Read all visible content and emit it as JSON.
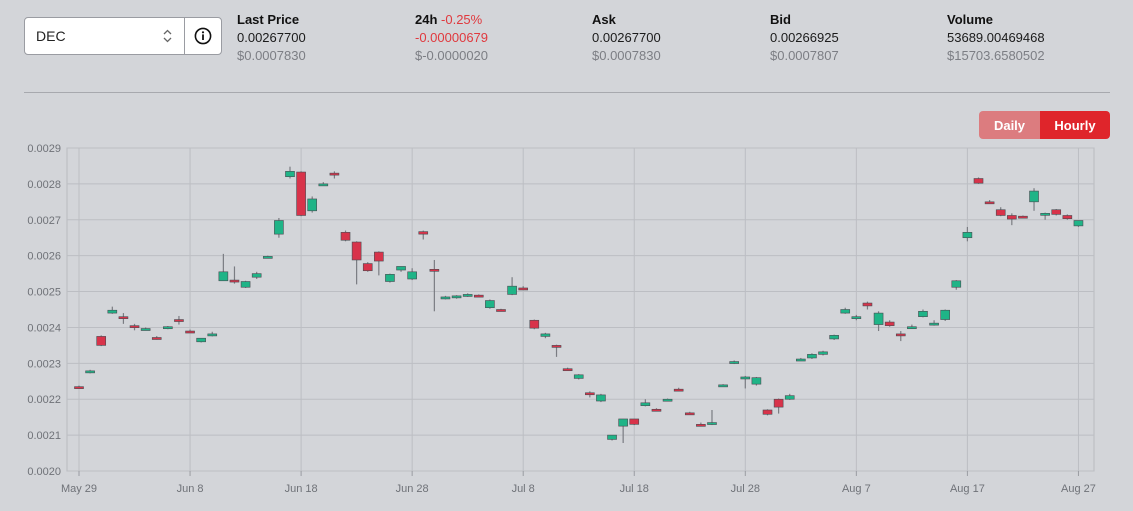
{
  "pair_selector": {
    "value": "DEC"
  },
  "stats": {
    "last_price": {
      "label": "Last Price",
      "value": "0.00267700",
      "usd": "$0.0007830"
    },
    "change_24h": {
      "label": "24h",
      "percent": "-0.25%",
      "value": "-0.00000679",
      "usd": "$-0.0000020"
    },
    "ask": {
      "label": "Ask",
      "value": "0.00267700",
      "usd": "$0.0007830"
    },
    "bid": {
      "label": "Bid",
      "value": "0.00266925",
      "usd": "$0.0007807"
    },
    "volume": {
      "label": "Volume",
      "value": "53689.00469468",
      "usd": "$15703.6580502"
    }
  },
  "toggle": {
    "daily": "Daily",
    "hourly": "Hourly",
    "active": "Hourly"
  },
  "colors": {
    "up": "#1fb487",
    "down": "#d8334a",
    "accent": "#df252b"
  },
  "chart_data": {
    "type": "candlestick",
    "y_ticks": [
      "0.0020",
      "0.0021",
      "0.0022",
      "0.0023",
      "0.0024",
      "0.0025",
      "0.0026",
      "0.0027",
      "0.0028",
      "0.0029"
    ],
    "ylim": [
      0.002,
      0.0029
    ],
    "x_ticks": [
      "May 29",
      "Jun 8",
      "Jun 18",
      "Jun 28",
      "Jul 8",
      "Jul 18",
      "Jul 28",
      "Aug 7",
      "Aug 17",
      "Aug 27"
    ],
    "x_range_days": [
      0,
      91
    ],
    "grid": true,
    "candles": [
      {
        "d": 0,
        "o": 0.002235,
        "h": 0.002238,
        "l": 0.00223,
        "c": 0.002232
      },
      {
        "d": 1,
        "o": 0.002277,
        "h": 0.002282,
        "l": 0.002272,
        "c": 0.002279
      },
      {
        "d": 2,
        "o": 0.002375,
        "h": 0.002378,
        "l": 0.002348,
        "c": 0.00235
      },
      {
        "d": 3,
        "o": 0.00244,
        "h": 0.002458,
        "l": 0.002438,
        "c": 0.002448
      },
      {
        "d": 4,
        "o": 0.00243,
        "h": 0.00244,
        "l": 0.00241,
        "c": 0.002428
      },
      {
        "d": 5,
        "o": 0.002405,
        "h": 0.00241,
        "l": 0.002392,
        "c": 0.002402
      },
      {
        "d": 6,
        "o": 0.002396,
        "h": 0.0024,
        "l": 0.002392,
        "c": 0.002397
      },
      {
        "d": 7,
        "o": 0.002372,
        "h": 0.002376,
        "l": 0.002366,
        "c": 0.002368
      },
      {
        "d": 8,
        "o": 0.0024,
        "h": 0.002404,
        "l": 0.002395,
        "c": 0.002402
      },
      {
        "d": 9,
        "o": 0.002422,
        "h": 0.002432,
        "l": 0.002408,
        "c": 0.00242
      },
      {
        "d": 10,
        "o": 0.00239,
        "h": 0.002394,
        "l": 0.002385,
        "c": 0.002388
      },
      {
        "d": 11,
        "o": 0.00236,
        "h": 0.002368,
        "l": 0.002358,
        "c": 0.00237
      },
      {
        "d": 12,
        "o": 0.00238,
        "h": 0.002388,
        "l": 0.002375,
        "c": 0.002382
      },
      {
        "d": 13,
        "o": 0.00253,
        "h": 0.002605,
        "l": 0.00253,
        "c": 0.002555
      },
      {
        "d": 14,
        "o": 0.002532,
        "h": 0.00257,
        "l": 0.002522,
        "c": 0.00253
      },
      {
        "d": 15,
        "o": 0.002512,
        "h": 0.00253,
        "l": 0.00251,
        "c": 0.002528
      },
      {
        "d": 16,
        "o": 0.00254,
        "h": 0.002555,
        "l": 0.002535,
        "c": 0.00255
      },
      {
        "d": 17,
        "o": 0.002597,
        "h": 0.0026,
        "l": 0.002595,
        "c": 0.002598
      },
      {
        "d": 18,
        "o": 0.00266,
        "h": 0.002705,
        "l": 0.00265,
        "c": 0.002698
      },
      {
        "d": 19,
        "o": 0.00282,
        "h": 0.002848,
        "l": 0.002815,
        "c": 0.002835
      },
      {
        "d": 20,
        "o": 0.002833,
        "h": 0.002835,
        "l": 0.00271,
        "c": 0.002712
      },
      {
        "d": 21,
        "o": 0.002725,
        "h": 0.002765,
        "l": 0.00272,
        "c": 0.002758
      },
      {
        "d": 22,
        "o": 0.0028,
        "h": 0.002805,
        "l": 0.002795,
        "c": 0.0028
      },
      {
        "d": 23,
        "o": 0.00283,
        "h": 0.002835,
        "l": 0.002815,
        "c": 0.002825
      },
      {
        "d": 24,
        "o": 0.002665,
        "h": 0.00267,
        "l": 0.00264,
        "c": 0.002643
      },
      {
        "d": 25,
        "o": 0.002638,
        "h": 0.00264,
        "l": 0.00252,
        "c": 0.002588
      },
      {
        "d": 26,
        "o": 0.002578,
        "h": 0.002582,
        "l": 0.002555,
        "c": 0.002558
      },
      {
        "d": 27,
        "o": 0.00261,
        "h": 0.002612,
        "l": 0.002545,
        "c": 0.002585
      },
      {
        "d": 28,
        "o": 0.002528,
        "h": 0.00255,
        "l": 0.002525,
        "c": 0.002548
      },
      {
        "d": 29,
        "o": 0.00256,
        "h": 0.00257,
        "l": 0.002555,
        "c": 0.00257
      },
      {
        "d": 30,
        "o": 0.002535,
        "h": 0.002565,
        "l": 0.002532,
        "c": 0.002555
      },
      {
        "d": 31,
        "o": 0.002667,
        "h": 0.00267,
        "l": 0.002645,
        "c": 0.00266
      },
      {
        "d": 32,
        "o": 0.002562,
        "h": 0.002588,
        "l": 0.002445,
        "c": 0.00256
      },
      {
        "d": 33,
        "o": 0.002482,
        "h": 0.002488,
        "l": 0.002478,
        "c": 0.002485
      },
      {
        "d": 34,
        "o": 0.002485,
        "h": 0.00249,
        "l": 0.00248,
        "c": 0.002488
      },
      {
        "d": 35,
        "o": 0.002488,
        "h": 0.002495,
        "l": 0.002485,
        "c": 0.002492
      },
      {
        "d": 36,
        "o": 0.00249,
        "h": 0.002492,
        "l": 0.002486,
        "c": 0.002488
      },
      {
        "d": 37,
        "o": 0.002455,
        "h": 0.002478,
        "l": 0.002452,
        "c": 0.002475
      },
      {
        "d": 38,
        "o": 0.00245,
        "h": 0.002452,
        "l": 0.002448,
        "c": 0.002448
      },
      {
        "d": 39,
        "o": 0.002492,
        "h": 0.00254,
        "l": 0.00249,
        "c": 0.002515
      },
      {
        "d": 40,
        "o": 0.00251,
        "h": 0.002515,
        "l": 0.002505,
        "c": 0.002508
      },
      {
        "d": 41,
        "o": 0.00242,
        "h": 0.002422,
        "l": 0.002395,
        "c": 0.002398
      },
      {
        "d": 42,
        "o": 0.002375,
        "h": 0.002385,
        "l": 0.00237,
        "c": 0.002382
      },
      {
        "d": 43,
        "o": 0.00235,
        "h": 0.002352,
        "l": 0.002318,
        "c": 0.002348
      },
      {
        "d": 44,
        "o": 0.002285,
        "h": 0.002288,
        "l": 0.00228,
        "c": 0.002282
      },
      {
        "d": 45,
        "o": 0.002258,
        "h": 0.00227,
        "l": 0.002255,
        "c": 0.002268
      },
      {
        "d": 46,
        "o": 0.002218,
        "h": 0.002222,
        "l": 0.002205,
        "c": 0.002215
      },
      {
        "d": 47,
        "o": 0.002195,
        "h": 0.002215,
        "l": 0.002192,
        "c": 0.002212
      },
      {
        "d": 48,
        "o": 0.002088,
        "h": 0.0021,
        "l": 0.002085,
        "c": 0.0021
      },
      {
        "d": 49,
        "o": 0.002125,
        "h": 0.002145,
        "l": 0.002078,
        "c": 0.002145
      },
      {
        "d": 50,
        "o": 0.002145,
        "h": 0.002145,
        "l": 0.002128,
        "c": 0.00213
      },
      {
        "d": 51,
        "o": 0.002182,
        "h": 0.0022,
        "l": 0.00218,
        "c": 0.00219
      },
      {
        "d": 52,
        "o": 0.002172,
        "h": 0.002175,
        "l": 0.002168,
        "c": 0.00217
      },
      {
        "d": 53,
        "o": 0.002198,
        "h": 0.002202,
        "l": 0.002195,
        "c": 0.0022
      },
      {
        "d": 54,
        "o": 0.002228,
        "h": 0.002232,
        "l": 0.002222,
        "c": 0.002225
      },
      {
        "d": 55,
        "o": 0.002162,
        "h": 0.002165,
        "l": 0.002158,
        "c": 0.00216
      },
      {
        "d": 56,
        "o": 0.00213,
        "h": 0.002135,
        "l": 0.002125,
        "c": 0.002128
      },
      {
        "d": 57,
        "o": 0.002135,
        "h": 0.00217,
        "l": 0.002128,
        "c": 0.002135
      },
      {
        "d": 58,
        "o": 0.002238,
        "h": 0.002242,
        "l": 0.002235,
        "c": 0.00224
      },
      {
        "d": 59,
        "o": 0.002302,
        "h": 0.002308,
        "l": 0.002298,
        "c": 0.002305
      },
      {
        "d": 60,
        "o": 0.002262,
        "h": 0.002265,
        "l": 0.00223,
        "c": 0.002262
      },
      {
        "d": 61,
        "o": 0.002242,
        "h": 0.002262,
        "l": 0.002238,
        "c": 0.00226
      },
      {
        "d": 62,
        "o": 0.00217,
        "h": 0.002172,
        "l": 0.002155,
        "c": 0.002158
      },
      {
        "d": 63,
        "o": 0.0022,
        "h": 0.002202,
        "l": 0.00216,
        "c": 0.002178
      },
      {
        "d": 64,
        "o": 0.0022,
        "h": 0.002215,
        "l": 0.002198,
        "c": 0.00221
      },
      {
        "d": 65,
        "o": 0.00231,
        "h": 0.002315,
        "l": 0.002308,
        "c": 0.002312
      },
      {
        "d": 66,
        "o": 0.002315,
        "h": 0.002328,
        "l": 0.002312,
        "c": 0.002325
      },
      {
        "d": 67,
        "o": 0.002325,
        "h": 0.002335,
        "l": 0.002322,
        "c": 0.002332
      },
      {
        "d": 68,
        "o": 0.002368,
        "h": 0.00238,
        "l": 0.002365,
        "c": 0.002378
      },
      {
        "d": 69,
        "o": 0.00244,
        "h": 0.002455,
        "l": 0.002438,
        "c": 0.00245
      },
      {
        "d": 70,
        "o": 0.002428,
        "h": 0.002435,
        "l": 0.00242,
        "c": 0.00243
      },
      {
        "d": 71,
        "o": 0.002468,
        "h": 0.002472,
        "l": 0.00245,
        "c": 0.00246
      },
      {
        "d": 72,
        "o": 0.002408,
        "h": 0.002445,
        "l": 0.00239,
        "c": 0.00244
      },
      {
        "d": 73,
        "o": 0.002415,
        "h": 0.00242,
        "l": 0.002402,
        "c": 0.002405
      },
      {
        "d": 74,
        "o": 0.002382,
        "h": 0.00239,
        "l": 0.002362,
        "c": 0.00238
      },
      {
        "d": 75,
        "o": 0.0024,
        "h": 0.002408,
        "l": 0.002398,
        "c": 0.002402
      },
      {
        "d": 76,
        "o": 0.00243,
        "h": 0.00245,
        "l": 0.002428,
        "c": 0.002445
      },
      {
        "d": 77,
        "o": 0.00241,
        "h": 0.00242,
        "l": 0.002405,
        "c": 0.002412
      },
      {
        "d": 78,
        "o": 0.002422,
        "h": 0.00245,
        "l": 0.002418,
        "c": 0.002448
      },
      {
        "d": 79,
        "o": 0.002512,
        "h": 0.002532,
        "l": 0.002505,
        "c": 0.00253
      },
      {
        "d": 80,
        "o": 0.00265,
        "h": 0.00268,
        "l": 0.00264,
        "c": 0.002665
      },
      {
        "d": 81,
        "o": 0.002815,
        "h": 0.002818,
        "l": 0.0028,
        "c": 0.002802
      },
      {
        "d": 82,
        "o": 0.00275,
        "h": 0.002755,
        "l": 0.002745,
        "c": 0.002748
      },
      {
        "d": 83,
        "o": 0.002728,
        "h": 0.002735,
        "l": 0.00271,
        "c": 0.002712
      },
      {
        "d": 84,
        "o": 0.002712,
        "h": 0.002718,
        "l": 0.002685,
        "c": 0.002702
      },
      {
        "d": 85,
        "o": 0.00271,
        "h": 0.002712,
        "l": 0.002705,
        "c": 0.002708
      },
      {
        "d": 86,
        "o": 0.00275,
        "h": 0.002788,
        "l": 0.002725,
        "c": 0.00278
      },
      {
        "d": 87,
        "o": 0.002715,
        "h": 0.00272,
        "l": 0.0027,
        "c": 0.002718
      },
      {
        "d": 88,
        "o": 0.002728,
        "h": 0.00273,
        "l": 0.002712,
        "c": 0.002715
      },
      {
        "d": 89,
        "o": 0.002712,
        "h": 0.002715,
        "l": 0.0027,
        "c": 0.002703
      },
      {
        "d": 90,
        "o": 0.002683,
        "h": 0.002698,
        "l": 0.00268,
        "c": 0.002698
      }
    ]
  }
}
